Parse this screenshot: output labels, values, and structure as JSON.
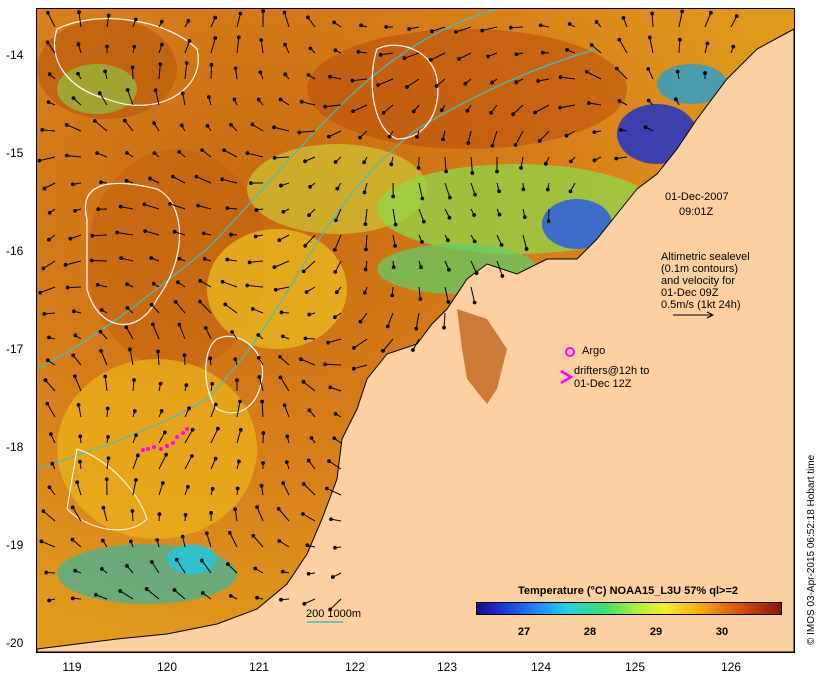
{
  "map": {
    "date_label": "01-Dec-2007",
    "time_label": "09:01Z",
    "altimetry_note": [
      "Altimetric sealevel",
      "(0.1m contours)",
      "and velocity for",
      "01-Dec 09Z",
      "0.5m/s (1kt 24h)"
    ],
    "argo_label": "Argo",
    "drifters_label": [
      "drifters@12h to",
      "01-Dec 12Z"
    ],
    "isobath_label": "200  1000m",
    "credit": "© IMOS 03-Apr-2015 06:52:18 Hobart time",
    "colorbar_title": "Temperature (°C) NOAA15_L3U 57% ql>=2",
    "colorbar_ticks": [
      "27",
      "28",
      "29",
      "30"
    ],
    "y_axis_ticks": [
      "-14",
      "-15",
      "-16",
      "-17",
      "-18",
      "-19",
      "-20"
    ],
    "x_axis_ticks": [
      "119",
      "120",
      "121",
      "122",
      "123",
      "124",
      "125",
      "126"
    ],
    "colors": {
      "land": "#fdd0a2",
      "isobath": "#40c0c0",
      "sealevel_contour": "#ffffff",
      "argo": "#ff00ff"
    }
  }
}
